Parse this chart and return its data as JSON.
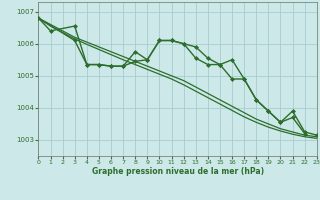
{
  "bg_color": "#cce8e8",
  "grid_color": "#aacccc",
  "line_color": "#2d6e2d",
  "xlabel": "Graphe pression niveau de la mer (hPa)",
  "ylim": [
    1002.5,
    1007.3
  ],
  "xlim": [
    0,
    23
  ],
  "yticks": [
    1003,
    1004,
    1005,
    1006,
    1007
  ],
  "xticks": [
    0,
    1,
    2,
    3,
    4,
    5,
    6,
    7,
    8,
    9,
    10,
    11,
    12,
    13,
    14,
    15,
    16,
    17,
    18,
    19,
    20,
    21,
    22,
    23
  ],
  "series": [
    {
      "x": [
        0,
        1,
        3,
        4,
        5,
        6,
        7,
        8,
        9,
        10,
        11,
        12,
        13,
        14,
        15,
        16,
        17,
        18,
        19,
        20,
        21,
        22
      ],
      "y": [
        1006.8,
        1006.4,
        1006.55,
        1005.35,
        1005.35,
        1005.3,
        1005.3,
        1005.75,
        1005.5,
        1006.1,
        1006.1,
        1006.0,
        1005.9,
        1005.55,
        1005.35,
        1004.9,
        1004.9,
        1004.25,
        1003.9,
        1003.55,
        1003.7,
        1003.2
      ],
      "marker": "D",
      "markersize": 2.0,
      "linewidth": 1.0
    },
    {
      "x": [
        0,
        1,
        2,
        3,
        4,
        5,
        6,
        7,
        8,
        9,
        10,
        11,
        12,
        13,
        14,
        15,
        16,
        17,
        18,
        19,
        20,
        21,
        22,
        23
      ],
      "y": [
        1006.8,
        1006.6,
        1006.4,
        1006.2,
        1006.05,
        1005.9,
        1005.75,
        1005.6,
        1005.45,
        1005.3,
        1005.15,
        1005.0,
        1004.85,
        1004.65,
        1004.45,
        1004.25,
        1004.05,
        1003.85,
        1003.65,
        1003.5,
        1003.35,
        1003.25,
        1003.15,
        1003.1
      ],
      "marker": null,
      "markersize": 0,
      "linewidth": 0.9
    },
    {
      "x": [
        0,
        1,
        2,
        3,
        4,
        5,
        6,
        7,
        8,
        9,
        10,
        11,
        12,
        13,
        14,
        15,
        16,
        17,
        18,
        19,
        20,
        21,
        22,
        23
      ],
      "y": [
        1006.8,
        1006.55,
        1006.35,
        1006.15,
        1005.98,
        1005.82,
        1005.66,
        1005.5,
        1005.35,
        1005.2,
        1005.05,
        1004.9,
        1004.72,
        1004.52,
        1004.32,
        1004.12,
        1003.92,
        1003.72,
        1003.55,
        1003.4,
        1003.28,
        1003.18,
        1003.1,
        1003.05
      ],
      "marker": null,
      "markersize": 0,
      "linewidth": 0.9
    },
    {
      "x": [
        0,
        3,
        4,
        5,
        6,
        7,
        8,
        9,
        10,
        11,
        12,
        13,
        14,
        15,
        16,
        17,
        18,
        19,
        20,
        21,
        22,
        23
      ],
      "y": [
        1006.8,
        1006.1,
        1005.35,
        1005.35,
        1005.3,
        1005.3,
        1005.45,
        1005.5,
        1006.1,
        1006.1,
        1006.0,
        1005.55,
        1005.35,
        1005.35,
        1005.5,
        1004.9,
        1004.25,
        1003.9,
        1003.55,
        1003.9,
        1003.25,
        1003.15
      ],
      "marker": "D",
      "markersize": 2.0,
      "linewidth": 1.0
    }
  ]
}
